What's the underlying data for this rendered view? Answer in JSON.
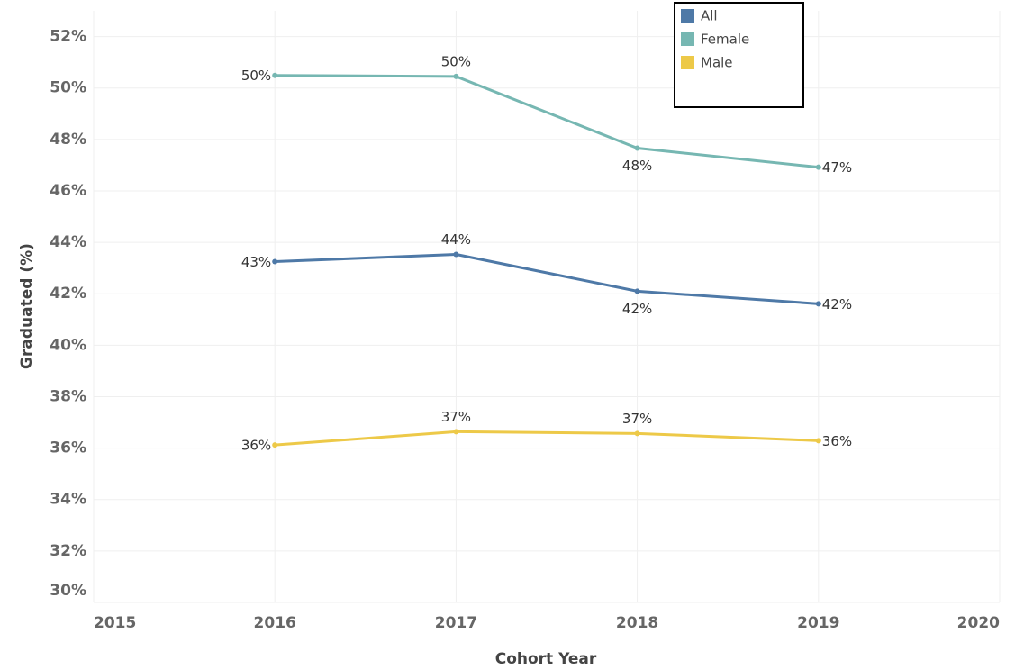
{
  "chart_data": {
    "type": "line",
    "x_label": "Cohort Year",
    "y_label": "Graduated (%)",
    "x": [
      2016,
      2017,
      2018,
      2019
    ],
    "xlim": [
      2015,
      2020
    ],
    "xticks": [
      2015,
      2016,
      2017,
      2018,
      2019,
      2020
    ],
    "ylim": [
      30,
      53
    ],
    "yticks": [
      {
        "value": 30,
        "label": "30%"
      },
      {
        "value": 32,
        "label": "32%"
      },
      {
        "value": 34,
        "label": "34%"
      },
      {
        "value": 36,
        "label": "36%"
      },
      {
        "value": 38,
        "label": "38%"
      },
      {
        "value": 40,
        "label": "40%"
      },
      {
        "value": 42,
        "label": "42%"
      },
      {
        "value": 44,
        "label": "44%"
      },
      {
        "value": 46,
        "label": "46%"
      },
      {
        "value": 48,
        "label": "48%"
      },
      {
        "value": 50,
        "label": "50%"
      },
      {
        "value": 52,
        "label": "52%"
      }
    ],
    "grid": true,
    "legend": "top-right",
    "series": [
      {
        "name": "All",
        "color": "#4e79a7",
        "values": [
          43.25,
          43.53,
          42.1,
          41.61
        ],
        "value_labels": [
          "43%",
          "44%",
          "42%",
          "42%"
        ]
      },
      {
        "name": "Female",
        "color": "#76b7b2",
        "values": [
          50.49,
          50.45,
          47.66,
          46.92
        ],
        "value_labels": [
          "50%",
          "50%",
          "48%",
          "47%"
        ]
      },
      {
        "name": "Male",
        "color": "#edc948",
        "values": [
          36.12,
          36.64,
          36.57,
          36.29
        ],
        "value_labels": [
          "36%",
          "37%",
          "37%",
          "36%"
        ]
      }
    ]
  }
}
